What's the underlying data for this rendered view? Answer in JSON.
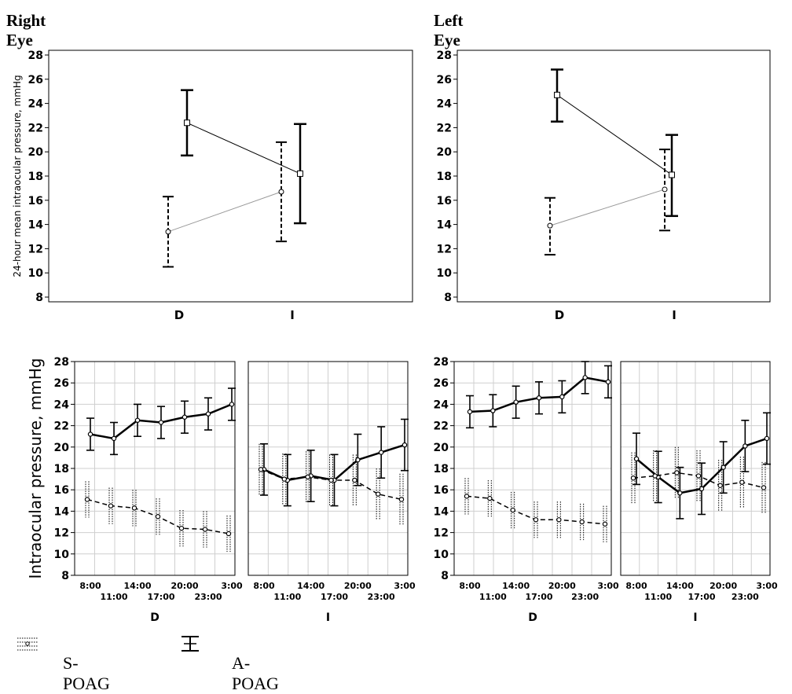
{
  "figure": {
    "right_eye_title": "Right Eye",
    "left_eye_title": "Left Eye",
    "legend": {
      "spoag": "S-POAG",
      "apoag": "A-POAG"
    }
  },
  "colors": {
    "frame": "#000000",
    "grid": "#cfcfcf",
    "apoag": "#000000",
    "spoag": "#000000",
    "spoag_mean_line": "#999999",
    "background": "#ffffff"
  },
  "chart_data": [
    {
      "id": "right-mean",
      "type": "line",
      "eye": "Right Eye",
      "ylabel": "24-hour mean intraocular pressure, mmHg",
      "ylim": [
        8,
        28
      ],
      "yticks": [
        8,
        10,
        12,
        14,
        16,
        18,
        20,
        22,
        24,
        26,
        28
      ],
      "categories": [
        "D",
        "I"
      ],
      "grid": false,
      "series": [
        {
          "name": "A-POAG",
          "marker": "square",
          "values": [
            22.4,
            18.2
          ],
          "lower": [
            19.7,
            14.1
          ],
          "upper": [
            25.1,
            22.3
          ]
        },
        {
          "name": "S-POAG",
          "marker": "circle",
          "values": [
            13.4,
            16.7
          ],
          "lower": [
            10.5,
            12.6
          ],
          "upper": [
            16.3,
            20.8
          ]
        }
      ]
    },
    {
      "id": "left-mean",
      "type": "line",
      "eye": "Left Eye",
      "ylabel": "",
      "ylim": [
        8,
        28
      ],
      "yticks": [
        8,
        10,
        12,
        14,
        16,
        18,
        20,
        22,
        24,
        26,
        28
      ],
      "categories": [
        "D",
        "I"
      ],
      "grid": false,
      "series": [
        {
          "name": "A-POAG",
          "marker": "square",
          "values": [
            24.7,
            18.1
          ],
          "lower": [
            22.5,
            14.7
          ],
          "upper": [
            26.8,
            21.4
          ]
        },
        {
          "name": "S-POAG",
          "marker": "circle",
          "values": [
            13.9,
            16.9
          ],
          "lower": [
            11.5,
            13.5
          ],
          "upper": [
            16.2,
            20.2
          ]
        }
      ]
    },
    {
      "id": "right-daily",
      "type": "line",
      "eye": "Right Eye",
      "ylabel": "Intraocular pressure, mmHg",
      "ylim": [
        8,
        28
      ],
      "yticks": [
        8,
        10,
        12,
        14,
        16,
        18,
        20,
        22,
        24,
        26,
        28
      ],
      "grid": true,
      "x": [
        "8:00",
        "11:00",
        "14:00",
        "17:00",
        "20:00",
        "23:00",
        "3:00"
      ],
      "panels": [
        {
          "label": "D",
          "series": [
            {
              "name": "A-POAG",
              "values": [
                21.2,
                20.8,
                22.5,
                22.3,
                22.8,
                23.1,
                24.0
              ],
              "lower": [
                19.7,
                19.3,
                21.0,
                20.8,
                21.3,
                21.6,
                22.5
              ],
              "upper": [
                22.7,
                22.3,
                24.0,
                23.8,
                24.3,
                24.6,
                25.5
              ]
            },
            {
              "name": "S-POAG",
              "values": [
                15.1,
                14.5,
                14.3,
                13.5,
                12.4,
                12.3,
                11.9
              ],
              "lower": [
                13.4,
                12.8,
                12.6,
                11.8,
                10.7,
                10.6,
                10.2
              ],
              "upper": [
                16.8,
                16.2,
                16.0,
                15.2,
                14.1,
                14.0,
                13.6
              ]
            }
          ]
        },
        {
          "label": "I",
          "series": [
            {
              "name": "A-POAG",
              "values": [
                17.9,
                16.9,
                17.3,
                16.9,
                18.8,
                19.5,
                20.2
              ],
              "lower": [
                15.5,
                14.5,
                14.9,
                14.5,
                16.4,
                17.1,
                17.8
              ],
              "upper": [
                20.3,
                19.3,
                19.7,
                19.3,
                21.2,
                21.9,
                22.6
              ]
            },
            {
              "name": "S-POAG",
              "values": [
                17.9,
                17.0,
                17.2,
                16.9,
                16.9,
                15.6,
                15.1
              ],
              "lower": [
                15.5,
                14.6,
                14.8,
                14.5,
                14.5,
                13.2,
                12.7
              ],
              "upper": [
                20.3,
                19.4,
                19.6,
                19.3,
                19.3,
                18.0,
                17.5
              ]
            }
          ]
        }
      ]
    },
    {
      "id": "left-daily",
      "type": "line",
      "eye": "Left Eye",
      "ylabel": "",
      "ylim": [
        8,
        28
      ],
      "yticks": [
        8,
        10,
        12,
        14,
        16,
        18,
        20,
        22,
        24,
        26,
        28
      ],
      "grid": true,
      "x": [
        "8:00",
        "11:00",
        "14:00",
        "17:00",
        "20:00",
        "23:00",
        "3:00"
      ],
      "panels": [
        {
          "label": "D",
          "series": [
            {
              "name": "A-POAG",
              "values": [
                23.3,
                23.4,
                24.2,
                24.6,
                24.7,
                26.5,
                26.1
              ],
              "lower": [
                21.8,
                21.9,
                22.7,
                23.1,
                23.2,
                25.0,
                24.6
              ],
              "upper": [
                24.8,
                24.9,
                25.7,
                26.1,
                26.2,
                28.0,
                27.6
              ]
            },
            {
              "name": "S-POAG",
              "values": [
                15.4,
                15.2,
                14.1,
                13.2,
                13.2,
                13.0,
                12.8
              ],
              "lower": [
                13.7,
                13.5,
                12.4,
                11.5,
                11.5,
                11.3,
                11.1
              ],
              "upper": [
                17.1,
                16.9,
                15.8,
                14.9,
                14.9,
                14.7,
                14.5
              ]
            }
          ]
        },
        {
          "label": "I",
          "series": [
            {
              "name": "A-POAG",
              "values": [
                18.9,
                17.2,
                15.7,
                16.1,
                18.1,
                20.1,
                20.8
              ],
              "lower": [
                16.5,
                14.8,
                13.3,
                13.7,
                15.7,
                17.7,
                18.4
              ],
              "upper": [
                21.3,
                19.6,
                18.1,
                18.5,
                20.5,
                22.5,
                23.2
              ]
            },
            {
              "name": "S-POAG",
              "values": [
                17.1,
                17.3,
                17.6,
                17.3,
                16.4,
                16.7,
                16.2
              ],
              "lower": [
                14.7,
                14.9,
                15.2,
                14.9,
                14.0,
                14.3,
                13.8
              ],
              "upper": [
                19.5,
                19.7,
                20.0,
                19.7,
                18.8,
                19.1,
                18.6
              ]
            }
          ]
        }
      ]
    }
  ]
}
